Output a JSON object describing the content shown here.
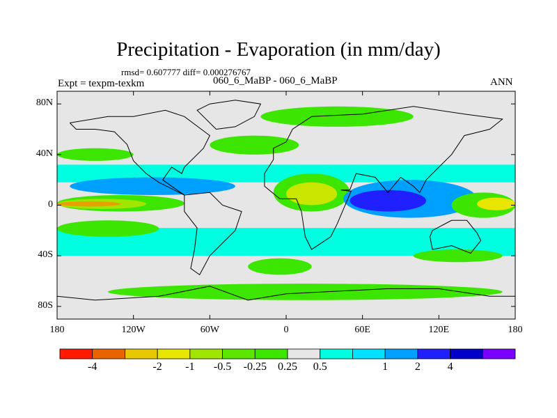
{
  "figure": {
    "title": "Precipitation - Evaporation (in mm/day)",
    "stats": "rmsd= 0.607777 diff= 0.000276767",
    "experiment": "Expt = texpm-texkm",
    "runs": "060_6_MaBP - 060_6_MaBP",
    "season": "ANN"
  },
  "map": {
    "projection": "cylindrical-equidistant",
    "lon_range": [
      -180,
      180
    ],
    "lat_range": [
      -90,
      90
    ],
    "lat_ticks": [
      {
        "value": 80,
        "label": "80N"
      },
      {
        "value": 40,
        "label": "40N"
      },
      {
        "value": 0,
        "label": "0"
      },
      {
        "value": -40,
        "label": "40S"
      },
      {
        "value": -80,
        "label": "80S"
      }
    ],
    "lon_ticks": [
      {
        "value": -180,
        "label": "180"
      },
      {
        "value": -120,
        "label": "120W"
      },
      {
        "value": -60,
        "label": "60W"
      },
      {
        "value": 0,
        "label": "0"
      },
      {
        "value": 60,
        "label": "60E"
      },
      {
        "value": 120,
        "label": "120E"
      },
      {
        "value": 180,
        "label": "180"
      }
    ],
    "background_color": "#e6e6e6",
    "regions": [
      {
        "name": "lat-band-north-cyan",
        "color": "#00ffe0",
        "lon": [
          -180,
          180
        ],
        "lat": [
          18,
          32
        ],
        "shape": "rect"
      },
      {
        "name": "lat-band-south-cyan",
        "color": "#00ffe0",
        "lon": [
          -180,
          180
        ],
        "lat": [
          -40,
          -18
        ],
        "shape": "rect"
      },
      {
        "name": "itcz-pacific-green",
        "color": "#3de600",
        "lon": [
          -180,
          -80
        ],
        "lat": [
          -5,
          8
        ],
        "shape": "ellipse"
      },
      {
        "name": "itcz-pacific-yellow-green",
        "color": "#a0e600",
        "lon": [
          -180,
          -110
        ],
        "lat": [
          -3,
          5
        ],
        "shape": "ellipse"
      },
      {
        "name": "itcz-pacific-orange",
        "color": "#e8a000",
        "lon": [
          -180,
          -130
        ],
        "lat": [
          -1,
          3
        ],
        "shape": "ellipse"
      },
      {
        "name": "pacific-blue-band",
        "color": "#0044ff",
        "lon": [
          -160,
          -60
        ],
        "lat": [
          10,
          18
        ],
        "shape": "ellipse"
      },
      {
        "name": "pacific-light-blue",
        "color": "#00a0ff",
        "lon": [
          -170,
          -40
        ],
        "lat": [
          8,
          22
        ],
        "shape": "ellipse"
      },
      {
        "name": "africa-arabia-green",
        "color": "#3de600",
        "lon": [
          -10,
          50
        ],
        "lat": [
          -5,
          25
        ],
        "shape": "ellipse"
      },
      {
        "name": "africa-yellow",
        "color": "#c8e600",
        "lon": [
          0,
          40
        ],
        "lat": [
          0,
          18
        ],
        "shape": "ellipse"
      },
      {
        "name": "indian-ocean-blue",
        "color": "#00a0ff",
        "lon": [
          45,
          150
        ],
        "lat": [
          -10,
          20
        ],
        "shape": "ellipse"
      },
      {
        "name": "indian-ocean-dark-blue",
        "color": "#2020ff",
        "lon": [
          50,
          110
        ],
        "lat": [
          -5,
          12
        ],
        "shape": "ellipse"
      },
      {
        "name": "west-pacific-green",
        "color": "#3de600",
        "lon": [
          130,
          180
        ],
        "lat": [
          -10,
          10
        ],
        "shape": "ellipse"
      },
      {
        "name": "west-pacific-yellow",
        "color": "#e8e600",
        "lon": [
          150,
          180
        ],
        "lat": [
          -4,
          6
        ],
        "shape": "ellipse"
      },
      {
        "name": "southern-green-band",
        "color": "#3de600",
        "lon": [
          -140,
          170
        ],
        "lat": [
          -75,
          -62
        ],
        "shape": "ellipse"
      },
      {
        "name": "north-atlantic-green",
        "color": "#3de600",
        "lon": [
          -60,
          10
        ],
        "lat": [
          40,
          55
        ],
        "shape": "ellipse"
      },
      {
        "name": "arctic-green",
        "color": "#3de600",
        "lon": [
          -20,
          100
        ],
        "lat": [
          62,
          78
        ],
        "shape": "ellipse"
      },
      {
        "name": "north-pacific-green",
        "color": "#3de600",
        "lon": [
          -180,
          -120
        ],
        "lat": [
          35,
          45
        ],
        "shape": "ellipse"
      },
      {
        "name": "south-pacific-green",
        "color": "#3de600",
        "lon": [
          -180,
          -100
        ],
        "lat": [
          -25,
          -12
        ],
        "shape": "ellipse"
      },
      {
        "name": "south-atlantic-green",
        "color": "#3de600",
        "lon": [
          -30,
          20
        ],
        "lat": [
          -55,
          -42
        ],
        "shape": "ellipse"
      },
      {
        "name": "south-indian-green",
        "color": "#3de600",
        "lon": [
          100,
          170
        ],
        "lat": [
          -45,
          -35
        ],
        "shape": "ellipse"
      }
    ],
    "coastlines": [
      {
        "name": "north-america",
        "points": [
          [
            -170,
            65
          ],
          [
            -140,
            70
          ],
          [
            -120,
            70
          ],
          [
            -95,
            75
          ],
          [
            -80,
            70
          ],
          [
            -60,
            55
          ],
          [
            -65,
            45
          ],
          [
            -80,
            30
          ],
          [
            -82,
            25
          ],
          [
            -90,
            30
          ],
          [
            -97,
            20
          ],
          [
            -90,
            15
          ],
          [
            -80,
            8
          ],
          [
            -100,
            18
          ],
          [
            -110,
            25
          ],
          [
            -120,
            35
          ],
          [
            -125,
            48
          ],
          [
            -135,
            58
          ],
          [
            -150,
            60
          ],
          [
            -165,
            60
          ],
          [
            -170,
            65
          ]
        ]
      },
      {
        "name": "south-america",
        "points": [
          [
            -80,
            8
          ],
          [
            -60,
            10
          ],
          [
            -50,
            0
          ],
          [
            -35,
            -5
          ],
          [
            -40,
            -20
          ],
          [
            -50,
            -30
          ],
          [
            -60,
            -40
          ],
          [
            -68,
            -55
          ],
          [
            -75,
            -50
          ],
          [
            -72,
            -35
          ],
          [
            -70,
            -18
          ],
          [
            -80,
            -5
          ],
          [
            -80,
            8
          ]
        ]
      },
      {
        "name": "eurasia-africa",
        "points": [
          [
            -10,
            36
          ],
          [
            -10,
            45
          ],
          [
            0,
            50
          ],
          [
            5,
            60
          ],
          [
            20,
            70
          ],
          [
            60,
            72
          ],
          [
            100,
            78
          ],
          [
            140,
            72
          ],
          [
            170,
            68
          ],
          [
            160,
            60
          ],
          [
            140,
            55
          ],
          [
            130,
            40
          ],
          [
            120,
            30
          ],
          [
            110,
            20
          ],
          [
            105,
            10
          ],
          [
            100,
            15
          ],
          [
            90,
            22
          ],
          [
            80,
            10
          ],
          [
            70,
            22
          ],
          [
            55,
            25
          ],
          [
            50,
            12
          ],
          [
            43,
            12
          ],
          [
            51,
            11
          ],
          [
            40,
            -15
          ],
          [
            35,
            -25
          ],
          [
            20,
            -35
          ],
          [
            15,
            -25
          ],
          [
            12,
            -5
          ],
          [
            8,
            5
          ],
          [
            -5,
            5
          ],
          [
            -17,
            15
          ],
          [
            -17,
            25
          ],
          [
            -10,
            36
          ]
        ]
      },
      {
        "name": "australia",
        "points": [
          [
            115,
            -20
          ],
          [
            130,
            -12
          ],
          [
            142,
            -12
          ],
          [
            150,
            -22
          ],
          [
            153,
            -28
          ],
          [
            145,
            -38
          ],
          [
            130,
            -32
          ],
          [
            115,
            -35
          ],
          [
            113,
            -25
          ],
          [
            115,
            -20
          ]
        ]
      },
      {
        "name": "antarctica",
        "points": [
          [
            -180,
            -72
          ],
          [
            -150,
            -75
          ],
          [
            -100,
            -72
          ],
          [
            -60,
            -64
          ],
          [
            -30,
            -75
          ],
          [
            0,
            -70
          ],
          [
            40,
            -68
          ],
          [
            80,
            -66
          ],
          [
            120,
            -66
          ],
          [
            160,
            -72
          ],
          [
            180,
            -72
          ]
        ]
      },
      {
        "name": "greenland",
        "points": [
          [
            -55,
            60
          ],
          [
            -40,
            62
          ],
          [
            -25,
            70
          ],
          [
            -20,
            80
          ],
          [
            -40,
            83
          ],
          [
            -60,
            80
          ],
          [
            -70,
            75
          ],
          [
            -55,
            60
          ]
        ]
      }
    ]
  },
  "colorbar": {
    "colors": [
      "#ff1a00",
      "#e86400",
      "#e8c800",
      "#e6e600",
      "#a0e600",
      "#5ae600",
      "#3de600",
      "#e6e6e6",
      "#00ffe0",
      "#00e0ff",
      "#00a0ff",
      "#2020ff",
      "#0000c8",
      "#7a00ff"
    ],
    "labels": [
      {
        "index": 1,
        "text": "-4"
      },
      {
        "index": 3,
        "text": "-2"
      },
      {
        "index": 4,
        "text": "-1"
      },
      {
        "index": 5,
        "text": "-0.5"
      },
      {
        "index": 6,
        "text": "-0.25"
      },
      {
        "index": 7,
        "text": "0.25"
      },
      {
        "index": 8,
        "text": "0.5"
      },
      {
        "index": 10,
        "text": "1"
      },
      {
        "index": 11,
        "text": "2"
      },
      {
        "index": 12,
        "text": "4"
      }
    ]
  }
}
